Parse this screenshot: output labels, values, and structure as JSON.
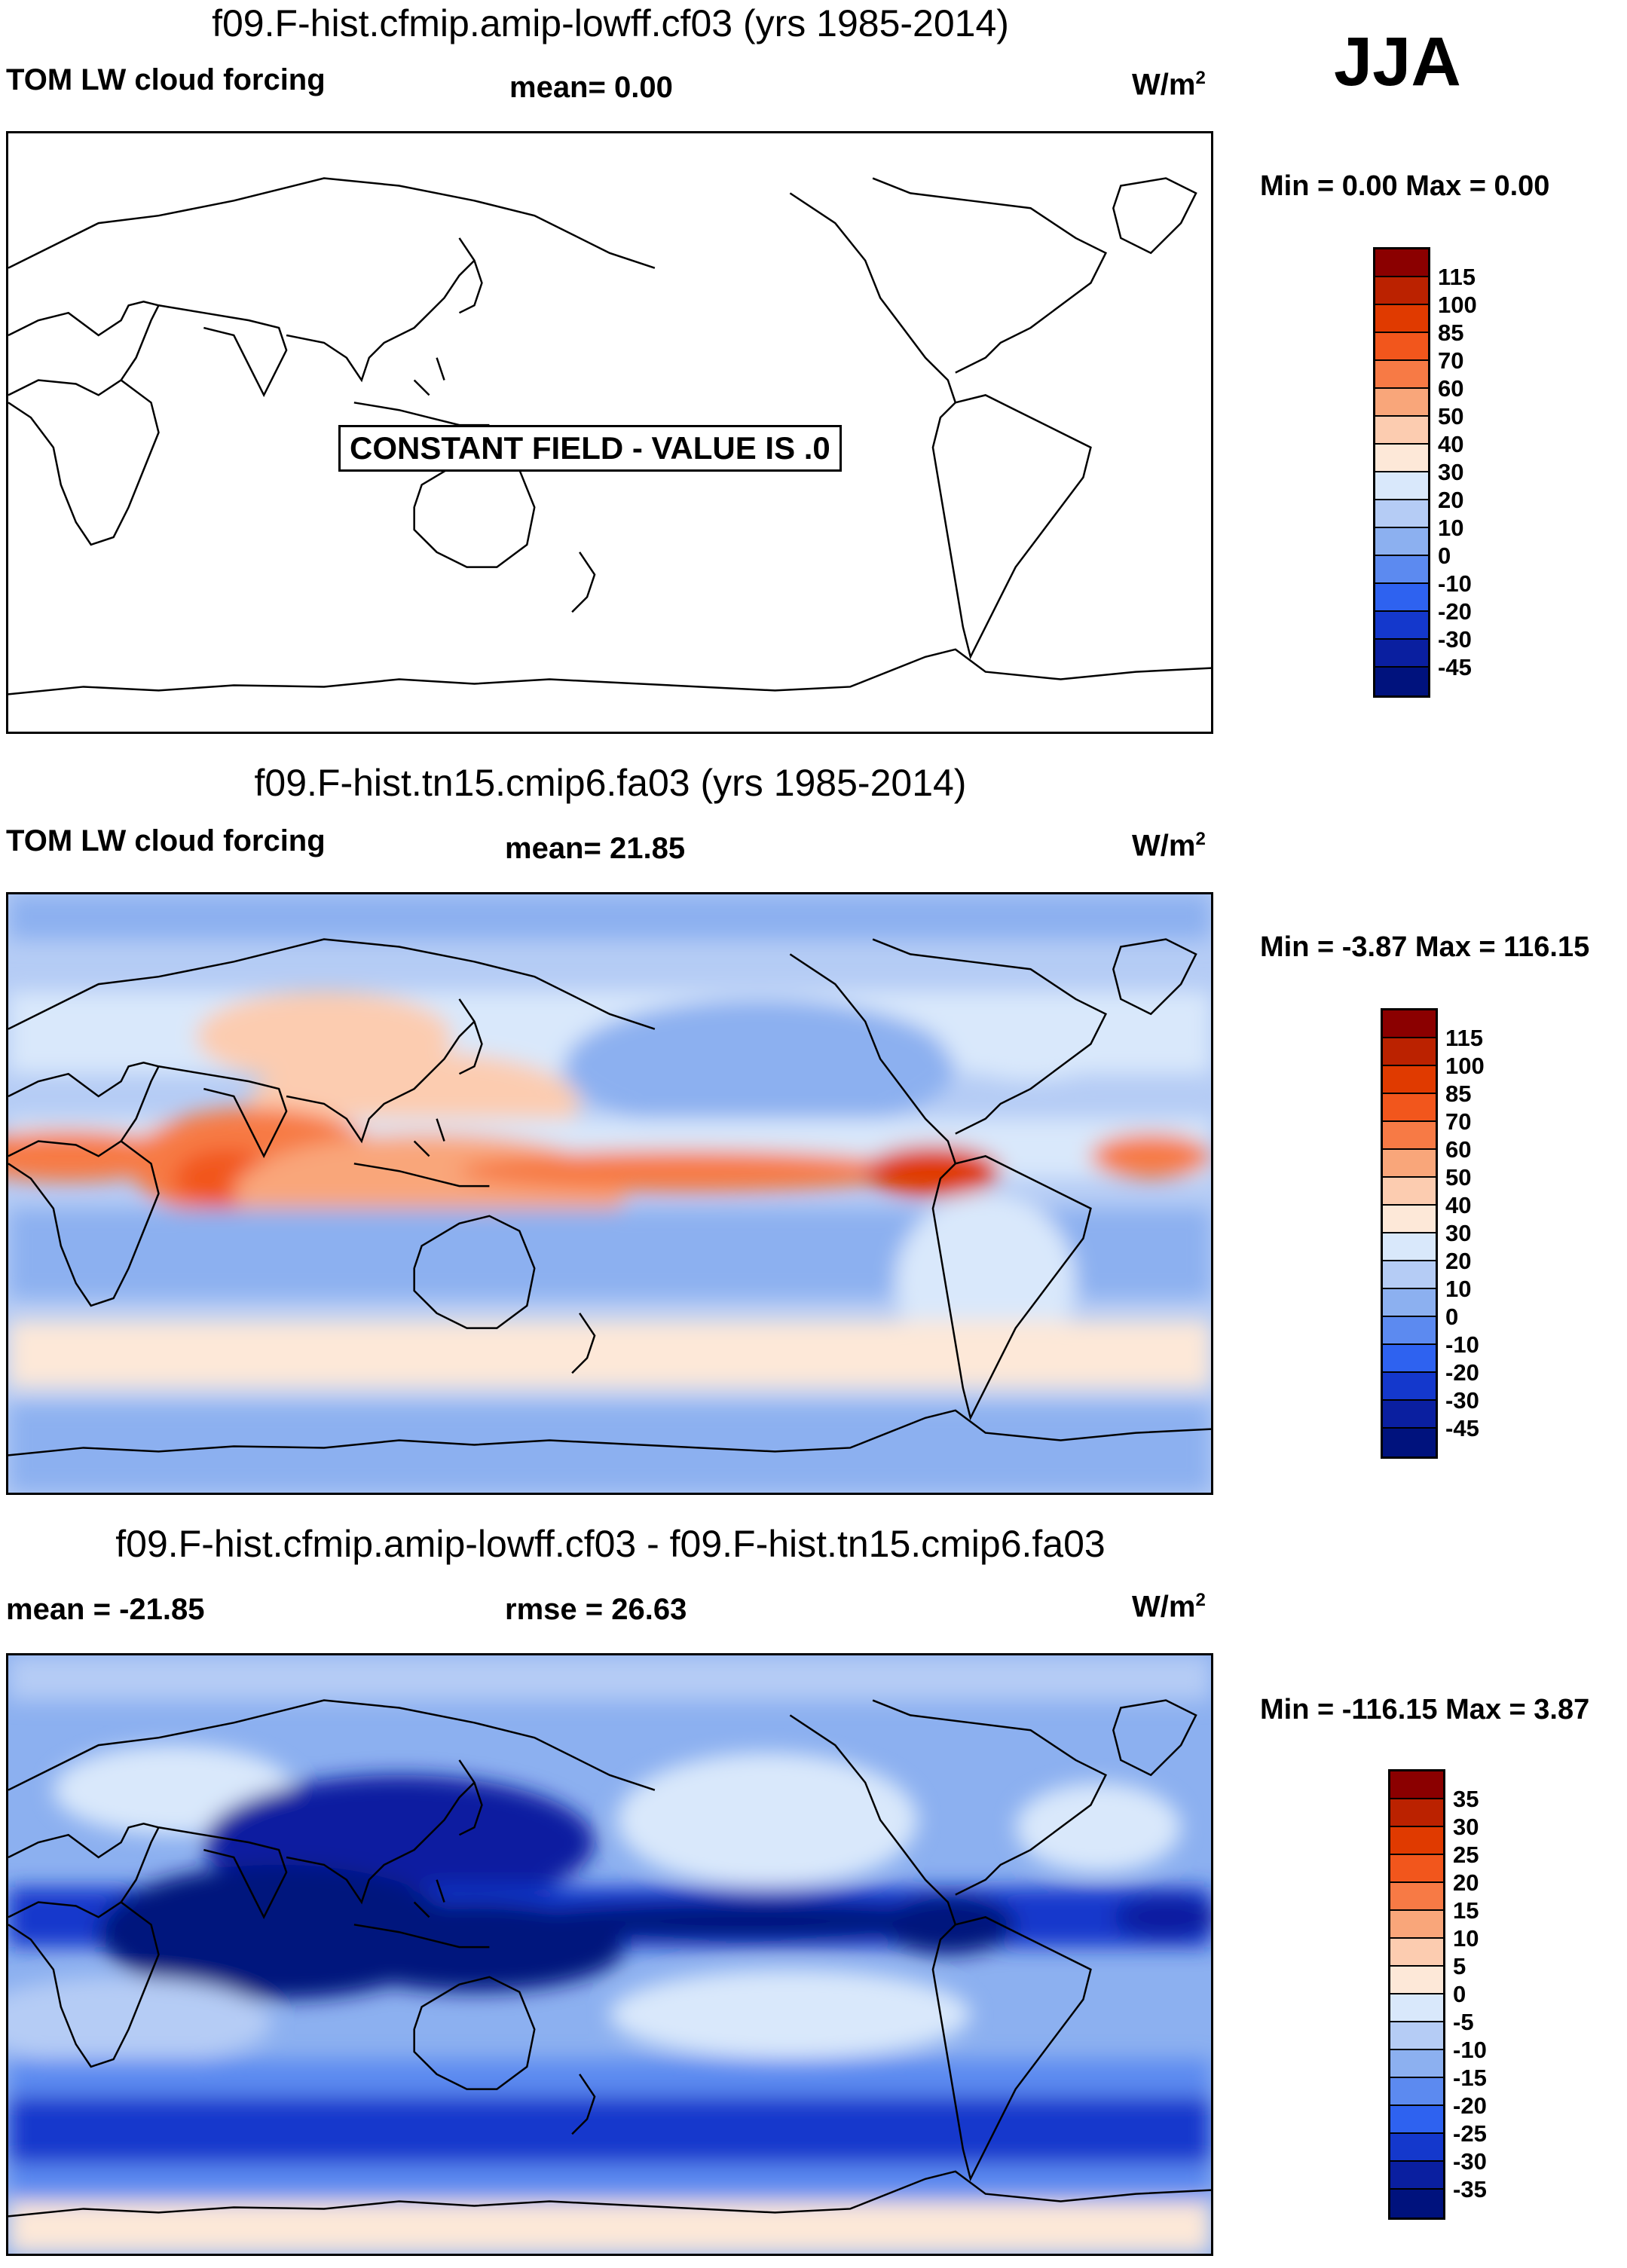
{
  "season": "JJA",
  "panels": [
    {
      "title": "f09.F-hist.cfmip.amip-lowff.cf03 (yrs 1985-2014)",
      "left_label": "TOM LW cloud forcing",
      "center_label": "mean=   0.00",
      "units": "W/m",
      "units_exp": "2",
      "min_max": "Min =   0.00 Max =   0.00",
      "overlay": "CONSTANT FIELD - VALUE IS .0",
      "colorbar_levels": [
        "115",
        "100",
        "85",
        "70",
        "60",
        "50",
        "40",
        "30",
        "20",
        "10",
        "0",
        "-10",
        "-20",
        "-30",
        "-45"
      ]
    },
    {
      "title": "f09.F-hist.tn15.cmip6.fa03 (yrs 1985-2014)",
      "left_label": "TOM LW cloud forcing",
      "center_label": "mean=  21.85",
      "units": "W/m",
      "units_exp": "2",
      "min_max": "Min =  -3.87 Max = 116.15",
      "colorbar_levels": [
        "115",
        "100",
        "85",
        "70",
        "60",
        "50",
        "40",
        "30",
        "20",
        "10",
        "0",
        "-10",
        "-20",
        "-30",
        "-45"
      ]
    },
    {
      "title": "f09.F-hist.cfmip.amip-lowff.cf03 - f09.F-hist.tn15.cmip6.fa03",
      "left_label": "mean = -21.85",
      "center_label": "rmse =  26.63",
      "units": "W/m",
      "units_exp": "2",
      "min_max": "Min = -116.15 Max =   3.87",
      "colorbar_levels": [
        "35",
        "30",
        "25",
        "20",
        "15",
        "10",
        "5",
        "0",
        "-5",
        "-10",
        "-15",
        "-20",
        "-25",
        "-30",
        "-35"
      ]
    }
  ],
  "colors": {
    "palette": [
      "#8b0000",
      "#bb2200",
      "#e03a00",
      "#f2561c",
      "#f77a45",
      "#f9a67a",
      "#fcccb0",
      "#fde8d8",
      "#d9e8fb",
      "#b5ccf5",
      "#8cb0f0",
      "#5c8af0",
      "#2e62f0",
      "#1438cc",
      "#0a1fa0",
      "#00127d"
    ]
  }
}
